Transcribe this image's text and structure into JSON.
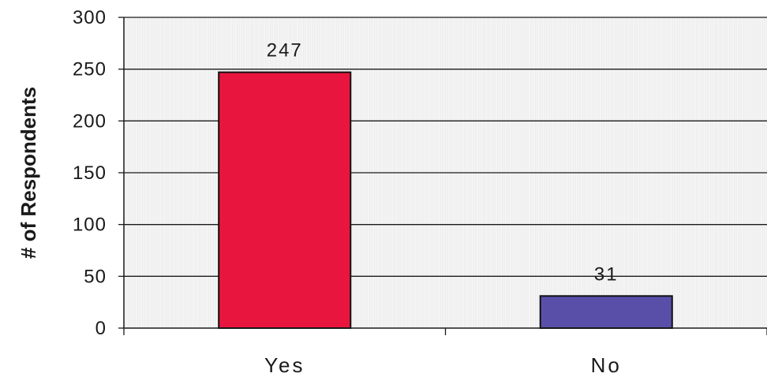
{
  "chart_data": {
    "type": "bar",
    "title": "",
    "xlabel": "",
    "ylabel": "# of Respondents",
    "categories": [
      "Yes",
      "No"
    ],
    "values": [
      247,
      31
    ],
    "data_labels": [
      "247",
      "31"
    ],
    "ylim": [
      0,
      300
    ],
    "yticks": [
      0,
      50,
      100,
      150,
      200,
      250,
      300
    ],
    "ytick_labels": [
      "0",
      "50",
      "100",
      "150",
      "200",
      "250",
      "300"
    ],
    "bar_colors": [
      "#e8163f",
      "#5a4fa8"
    ],
    "grid": true,
    "legend": "none"
  }
}
